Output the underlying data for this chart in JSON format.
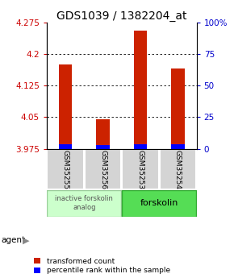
{
  "title": "GDS1039 / 1382204_at",
  "samples": [
    "GSM35255",
    "GSM35256",
    "GSM35253",
    "GSM35254"
  ],
  "red_values": [
    4.175,
    4.045,
    4.255,
    4.165
  ],
  "blue_values": [
    3.985,
    3.983,
    3.986,
    3.985
  ],
  "red_base": 3.975,
  "ylim_left": [
    3.975,
    4.275
  ],
  "yticks_left": [
    3.975,
    4.05,
    4.125,
    4.2,
    4.275
  ],
  "yticks_right": [
    0,
    25,
    50,
    75,
    100
  ],
  "ylim_right": [
    0,
    100
  ],
  "group1_label": "inactive forskolin\nanalog",
  "group1_color": "#ccffcc",
  "group2_label": "forskolin",
  "group2_color": "#55dd55",
  "agent_label": "agent",
  "legend_red": "transformed count",
  "legend_blue": "percentile rank within the sample",
  "bg_color": "#ffffff",
  "left_tick_color": "#cc0000",
  "right_tick_color": "#0000cc",
  "title_fontsize": 10,
  "tick_fontsize": 7.5,
  "bar_width": 0.35
}
